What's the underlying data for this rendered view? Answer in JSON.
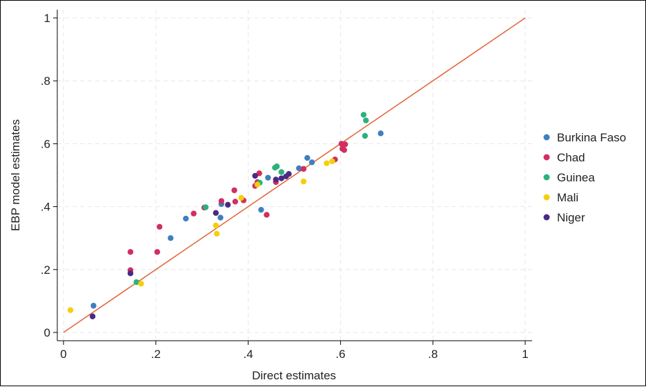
{
  "chart_data": {
    "type": "scatter",
    "title": "",
    "xlabel": "Direct estimates",
    "ylabel": "EBP model estimates",
    "xlim": [
      0,
      1
    ],
    "ylim": [
      0,
      1
    ],
    "x_ticks": [
      {
        "v": 0,
        "label": "0"
      },
      {
        "v": 0.2,
        "label": ".2"
      },
      {
        "v": 0.4,
        "label": ".4"
      },
      {
        "v": 0.6,
        "label": ".6"
      },
      {
        "v": 0.8,
        "label": ".8"
      },
      {
        "v": 1,
        "label": "1"
      }
    ],
    "y_ticks": [
      {
        "v": 0,
        "label": "0"
      },
      {
        "v": 0.2,
        "label": ".2"
      },
      {
        "v": 0.4,
        "label": ".4"
      },
      {
        "v": 0.6,
        "label": ".6"
      },
      {
        "v": 0.8,
        "label": ".8"
      },
      {
        "v": 1,
        "label": "1"
      }
    ],
    "grid": true,
    "legend_position": "right",
    "reference_line": {
      "from": [
        0,
        0
      ],
      "to": [
        1,
        1
      ],
      "color": "#e4673f"
    },
    "series": [
      {
        "name": "Burkina Faso",
        "color": "#3f7fbf",
        "points": [
          [
            0.065,
            0.085
          ],
          [
            0.232,
            0.3
          ],
          [
            0.265,
            0.362
          ],
          [
            0.34,
            0.365
          ],
          [
            0.342,
            0.408
          ],
          [
            0.428,
            0.39
          ],
          [
            0.443,
            0.492
          ],
          [
            0.51,
            0.522
          ],
          [
            0.528,
            0.555
          ],
          [
            0.538,
            0.541
          ],
          [
            0.687,
            0.633
          ]
        ]
      },
      {
        "name": "Chad",
        "color": "#d12f5f",
        "points": [
          [
            0.145,
            0.256
          ],
          [
            0.145,
            0.198
          ],
          [
            0.203,
            0.256
          ],
          [
            0.208,
            0.336
          ],
          [
            0.282,
            0.378
          ],
          [
            0.305,
            0.397
          ],
          [
            0.342,
            0.418
          ],
          [
            0.37,
            0.452
          ],
          [
            0.372,
            0.416
          ],
          [
            0.39,
            0.42
          ],
          [
            0.415,
            0.466
          ],
          [
            0.42,
            0.478
          ],
          [
            0.424,
            0.506
          ],
          [
            0.44,
            0.374
          ],
          [
            0.46,
            0.478
          ],
          [
            0.52,
            0.52
          ],
          [
            0.588,
            0.55
          ],
          [
            0.602,
            0.6
          ],
          [
            0.604,
            0.584
          ],
          [
            0.608,
            0.58
          ],
          [
            0.61,
            0.598
          ]
        ]
      },
      {
        "name": "Guinea",
        "color": "#2ab27b",
        "points": [
          [
            0.158,
            0.16
          ],
          [
            0.308,
            0.398
          ],
          [
            0.425,
            0.476
          ],
          [
            0.458,
            0.524
          ],
          [
            0.462,
            0.528
          ],
          [
            0.472,
            0.51
          ],
          [
            0.65,
            0.692
          ],
          [
            0.655,
            0.674
          ],
          [
            0.653,
            0.625
          ]
        ]
      },
      {
        "name": "Mali",
        "color": "#f5cf0a",
        "points": [
          [
            0.015,
            0.071
          ],
          [
            0.168,
            0.155
          ],
          [
            0.33,
            0.34
          ],
          [
            0.332,
            0.314
          ],
          [
            0.385,
            0.428
          ],
          [
            0.42,
            0.47
          ],
          [
            0.52,
            0.48
          ],
          [
            0.57,
            0.538
          ],
          [
            0.582,
            0.544
          ]
        ]
      },
      {
        "name": "Niger",
        "color": "#4b2a86",
        "points": [
          [
            0.063,
            0.051
          ],
          [
            0.145,
            0.188
          ],
          [
            0.33,
            0.38
          ],
          [
            0.356,
            0.406
          ],
          [
            0.415,
            0.498
          ],
          [
            0.46,
            0.486
          ],
          [
            0.472,
            0.49
          ],
          [
            0.482,
            0.496
          ],
          [
            0.488,
            0.504
          ]
        ]
      }
    ]
  }
}
